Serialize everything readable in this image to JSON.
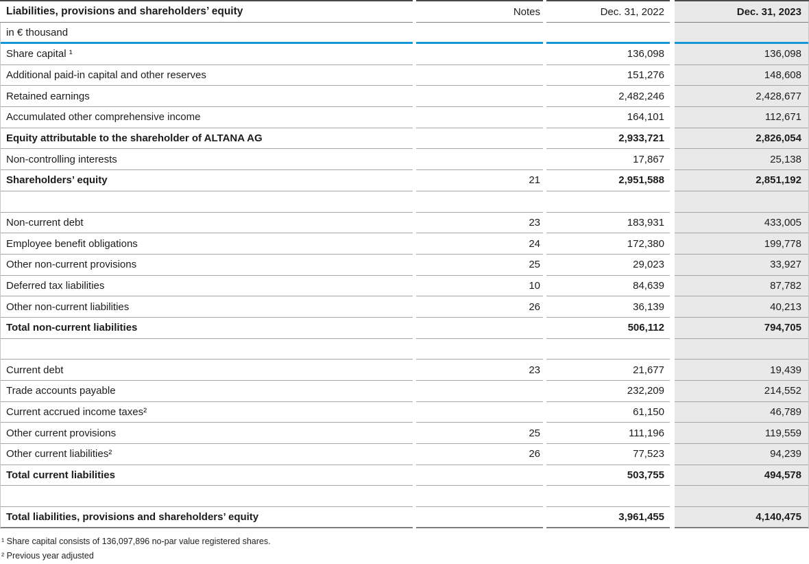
{
  "table": {
    "title": "Liabilities, provisions and shareholders’ equity",
    "unit_label": "in € thousand",
    "columns": {
      "notes": "Notes",
      "y2022": "Dec. 31, 2022",
      "y2023": "Dec. 31, 2023"
    },
    "rows": [
      {
        "label": "Share capital ¹",
        "note": "",
        "v2022": "136,098",
        "v2023": "136,098",
        "bold": false
      },
      {
        "label": "Additional paid-in capital and other reserves",
        "note": "",
        "v2022": "151,276",
        "v2023": "148,608",
        "bold": false
      },
      {
        "label": "Retained earnings",
        "note": "",
        "v2022": "2,482,246",
        "v2023": "2,428,677",
        "bold": false
      },
      {
        "label": "Accumulated other comprehensive income",
        "note": "",
        "v2022": "164,101",
        "v2023": "112,671",
        "bold": false
      },
      {
        "label": "Equity attributable to the shareholder of ALTANA AG",
        "note": "",
        "v2022": "2,933,721",
        "v2023": "2,826,054",
        "bold": true
      },
      {
        "label": "Non-controlling interests",
        "note": "",
        "v2022": "17,867",
        "v2023": "25,138",
        "bold": false
      },
      {
        "label": "Shareholders’ equity",
        "note": "21",
        "v2022": "2,951,588",
        "v2023": "2,851,192",
        "bold": true
      },
      {
        "spacer": true
      },
      {
        "label": "Non-current debt",
        "note": "23",
        "v2022": "183,931",
        "v2023": "433,005",
        "bold": false
      },
      {
        "label": "Employee benefit obligations",
        "note": "24",
        "v2022": "172,380",
        "v2023": "199,778",
        "bold": false
      },
      {
        "label": "Other non-current provisions",
        "note": "25",
        "v2022": "29,023",
        "v2023": "33,927",
        "bold": false
      },
      {
        "label": "Deferred tax liabilities",
        "note": "10",
        "v2022": "84,639",
        "v2023": "87,782",
        "bold": false
      },
      {
        "label": "Other non-current liabilities",
        "note": "26",
        "v2022": "36,139",
        "v2023": "40,213",
        "bold": false
      },
      {
        "label": "Total non-current liabilities",
        "note": "",
        "v2022": "506,112",
        "v2023": "794,705",
        "bold": true
      },
      {
        "spacer": true
      },
      {
        "label": "Current debt",
        "note": "23",
        "v2022": "21,677",
        "v2023": "19,439",
        "bold": false
      },
      {
        "label": "Trade accounts payable",
        "note": "",
        "v2022": "232,209",
        "v2023": "214,552",
        "bold": false
      },
      {
        "label": "Current accrued income taxes²",
        "note": "",
        "v2022": "61,150",
        "v2023": "46,789",
        "bold": false
      },
      {
        "label": "Other current provisions",
        "note": "25",
        "v2022": "111,196",
        "v2023": "119,559",
        "bold": false
      },
      {
        "label": "Other current liabilities²",
        "note": "26",
        "v2022": "77,523",
        "v2023": "94,239",
        "bold": false
      },
      {
        "label": "Total current liabilities",
        "note": "",
        "v2022": "503,755",
        "v2023": "494,578",
        "bold": true
      },
      {
        "spacer": true
      },
      {
        "label": "Total liabilities, provisions and shareholders’ equity",
        "note": "",
        "v2022": "3,961,455",
        "v2023": "4,140,475",
        "bold": true,
        "final": true
      }
    ]
  },
  "footnotes": [
    "¹ Share capital consists of 136,097,896 no-par value registered shares.",
    "² Previous year adjusted"
  ],
  "colors": {
    "accent_blue": "#1596d6",
    "highlight_column_bg": "#e9e9e9"
  }
}
